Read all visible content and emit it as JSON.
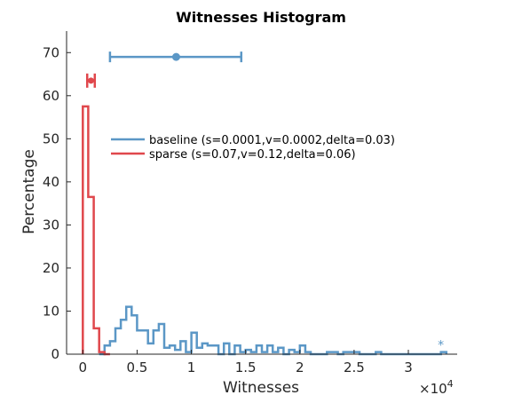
{
  "chart_data": {
    "type": "histogram",
    "title": "Witnesses Histogram",
    "xlabel": "Witnesses",
    "ylabel": "Percentage",
    "x_multiplier_label": "×10",
    "x_multiplier_exponent": "4",
    "xlim": [
      -1500,
      34500
    ],
    "ylim": [
      0,
      75
    ],
    "x_ticks": [
      {
        "value": 0,
        "label": "0"
      },
      {
        "value": 5000,
        "label": "0.5"
      },
      {
        "value": 10000,
        "label": "1"
      },
      {
        "value": 15000,
        "label": "1.5"
      },
      {
        "value": 20000,
        "label": "2"
      },
      {
        "value": 25000,
        "label": "2.5"
      },
      {
        "value": 30000,
        "label": "3"
      }
    ],
    "y_ticks": [
      {
        "value": 0,
        "label": "0"
      },
      {
        "value": 10,
        "label": "10"
      },
      {
        "value": 20,
        "label": "20"
      },
      {
        "value": 30,
        "label": "30"
      },
      {
        "value": 40,
        "label": "40"
      },
      {
        "value": 50,
        "label": "50"
      },
      {
        "value": 60,
        "label": "60"
      },
      {
        "value": 70,
        "label": "70"
      }
    ],
    "legend_position": "upper-middle",
    "series": [
      {
        "name": "baseline (s=0.0001,v=0.0002,delta=0.03)",
        "color": "#5b97c6",
        "edges": [
          1500,
          2000,
          2500,
          3000,
          3500,
          4000,
          4500,
          5000,
          5500,
          6000,
          6500,
          7000,
          7500,
          8000,
          8500,
          9000,
          9500,
          10000,
          10500,
          11000,
          11500,
          12000,
          12500,
          13000,
          13500,
          14000,
          14500,
          15000,
          15500,
          16000,
          16500,
          17000,
          17500,
          18000,
          18500,
          19000,
          19500,
          20000,
          20500,
          21000,
          21500,
          22000,
          22500,
          23000,
          23500,
          24000,
          24500,
          25000,
          25500,
          26000,
          26500,
          27000,
          27500,
          28000,
          28500,
          29000,
          29500,
          30000,
          30500,
          31000,
          31500,
          32000,
          32500,
          33000,
          33500
        ],
        "values": [
          0,
          2,
          3,
          6,
          8,
          11,
          9,
          5.5,
          5.5,
          2.5,
          5.5,
          7,
          1.5,
          2,
          1,
          3,
          0.5,
          5,
          1.5,
          2.5,
          2,
          2,
          0,
          2.5,
          0,
          2,
          0.5,
          1,
          0.5,
          2,
          0.5,
          2,
          0.5,
          1.5,
          0,
          1,
          0.5,
          2,
          0.5,
          0,
          0,
          0,
          0.5,
          0.5,
          0,
          0.5,
          0.5,
          0.5,
          0,
          0,
          0,
          0.5,
          0,
          0,
          0,
          0,
          0,
          0,
          0,
          0,
          0,
          0,
          0,
          0.5
        ],
        "mean": 8600,
        "error_low": 2500,
        "error_high": 14600,
        "error_y": 69,
        "outlier_marker": "*",
        "outlier_x": 33000,
        "outlier_y": 2
      },
      {
        "name": "sparse (s=0.07,v=0.12,delta=0.06)",
        "color": "#e0474c",
        "edges": [
          0,
          500,
          1000,
          1500,
          2000,
          2500
        ],
        "values": [
          57.5,
          36.5,
          6,
          0.5,
          0
        ],
        "mean": 750,
        "error_low": 400,
        "error_high": 1100,
        "error_y": 63.5
      }
    ]
  }
}
